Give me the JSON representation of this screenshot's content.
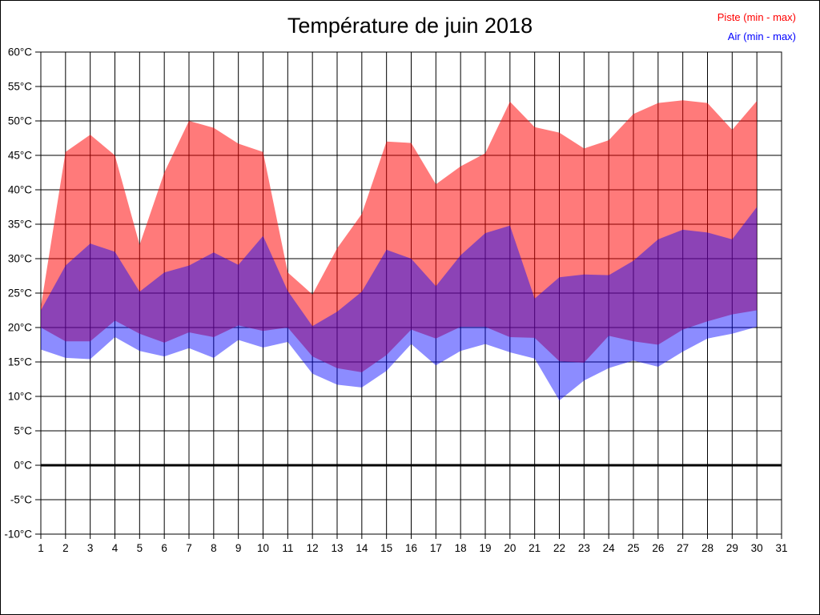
{
  "title": "Température de juin 2018",
  "legend": {
    "piste_label": "Piste (min - max)",
    "air_label": "Air (min - max)"
  },
  "colors": {
    "piste_text": "#ff0000",
    "air_text": "#0000ff",
    "piste_fill": "rgba(255,0,0,0.52)",
    "air_fill": "rgba(0,0,255,0.45)",
    "grid": "#000000",
    "frame": "#000000",
    "zero_line": "#000000",
    "tick_text": "#000000"
  },
  "chart_data": {
    "type": "area",
    "title": "Température de juin 2018",
    "xlabel": "",
    "ylabel": "",
    "ylim": [
      -10,
      60
    ],
    "xlim": [
      1,
      31
    ],
    "grid": true,
    "legend_position": "top-right",
    "zero_line_at": 0,
    "days": [
      1,
      2,
      3,
      4,
      5,
      6,
      7,
      8,
      9,
      10,
      11,
      12,
      13,
      14,
      15,
      16,
      17,
      18,
      19,
      20,
      21,
      22,
      23,
      24,
      25,
      26,
      27,
      28,
      29,
      30
    ],
    "series": [
      {
        "name": "Piste (min - max)",
        "max": [
          23,
          45.5,
          48,
          45,
          32,
          42.5,
          50,
          49,
          46.7,
          45.5,
          28,
          24.8,
          31.5,
          36.5,
          47,
          46.8,
          40.8,
          43.4,
          45.3,
          52.8,
          49.1,
          48.3,
          46,
          47.2,
          51,
          52.6,
          53,
          52.6,
          48.7,
          52.9
        ],
        "min": [
          20,
          18,
          18,
          21,
          19.1,
          17.8,
          19.3,
          18.6,
          20.3,
          19.5,
          20,
          15.8,
          14.1,
          13.5,
          16,
          19.7,
          18.4,
          20.1,
          20.1,
          18.6,
          18.5,
          15.1,
          14.9,
          18.8,
          18,
          17.5,
          19.7,
          20.9,
          21.9,
          22.5
        ]
      },
      {
        "name": "Air (min - max)",
        "max": [
          22.5,
          29,
          32.2,
          31,
          25.2,
          28,
          29,
          30.9,
          29.1,
          33.3,
          25.3,
          20.2,
          22.3,
          25.2,
          31.3,
          30,
          26,
          30.5,
          33.7,
          34.8,
          24.2,
          27.3,
          27.7,
          27.6,
          29.7,
          32.8,
          34.2,
          33.8,
          32.8,
          37.5
        ],
        "min": [
          16.8,
          15.6,
          15.4,
          18.6,
          16.6,
          15.8,
          17,
          15.6,
          18.2,
          17.1,
          17.9,
          13.3,
          11.7,
          11.3,
          13.7,
          17.6,
          14.5,
          16.6,
          17.6,
          16.4,
          15.5,
          9.4,
          12.3,
          14.1,
          15.2,
          14.3,
          16.5,
          18.4,
          19.1,
          20.1
        ]
      }
    ],
    "x_tick_labels": [
      "1",
      "2",
      "3",
      "4",
      "5",
      "6",
      "7",
      "8",
      "9",
      "10",
      "11",
      "12",
      "13",
      "14",
      "15",
      "16",
      "17",
      "18",
      "19",
      "20",
      "21",
      "22",
      "23",
      "24",
      "25",
      "26",
      "27",
      "28",
      "29",
      "30",
      "31"
    ],
    "y_tick_values": [
      60,
      55,
      50,
      45,
      40,
      35,
      30,
      25,
      20,
      15,
      10,
      5,
      0,
      -5,
      -10
    ],
    "y_tick_labels": [
      "60°C",
      "55°C",
      "50°C",
      "45°C",
      "40°C",
      "35°C",
      "30°C",
      "25°C",
      "20°C",
      "15°C",
      "10°C",
      "5°C",
      "0°C",
      "-5°C",
      "-10°C"
    ]
  }
}
